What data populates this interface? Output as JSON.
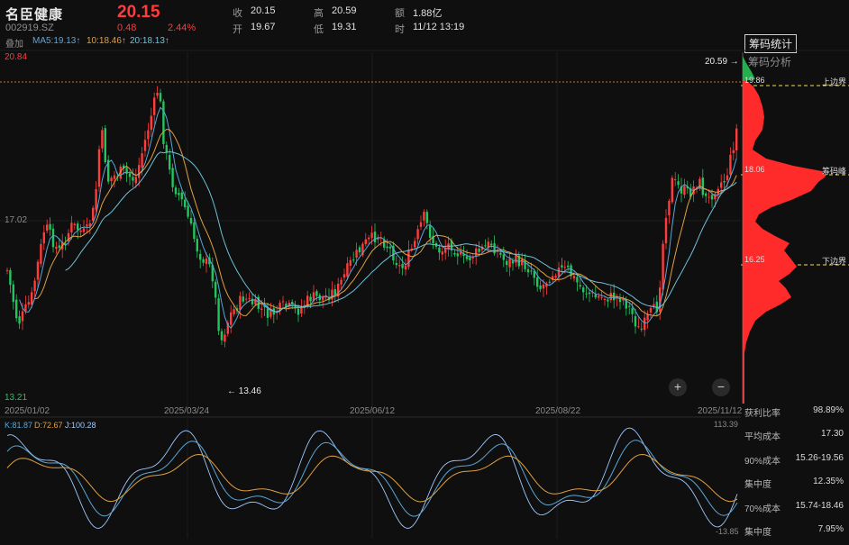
{
  "stock": {
    "name": "名臣健康",
    "code": "002919.SZ",
    "price": "20.15",
    "change": "0.48",
    "change_pct": "2.44%"
  },
  "quote": {
    "close_label": "收",
    "close": "20.15",
    "open_label": "开",
    "open": "19.67",
    "high_label": "高",
    "high": "20.59",
    "low_label": "低",
    "low": "19.31",
    "amount_label": "额",
    "amount": "1.88亿",
    "time_label": "时",
    "time": "11/12 13:19"
  },
  "ma": {
    "overlay": "叠加",
    "ma5": "MA5:19.13↑",
    "ma10": "10:18.46↑",
    "ma20": "20:18.13↑"
  },
  "tabs": {
    "chip_stats": "筹码统计",
    "chip_analysis": "筹码分析"
  },
  "chart_labels": {
    "axis_top": "20.84",
    "axis_mid": "17.02",
    "axis_bottom": "13.21",
    "high_mark": "20.59 →",
    "low_mark": "← 13.46",
    "dates": [
      "2025/01/02",
      "2025/03/24",
      "2025/06/12",
      "2025/08/22",
      "2025/11/12"
    ]
  },
  "chip": {
    "upper_value": "19.86",
    "upper_label": "上边界",
    "peak_value": "18.06",
    "peak_label": "筹码峰",
    "lower_value": "16.25",
    "lower_label": "下边界"
  },
  "kdj": {
    "k": "K:81.87",
    "d": "D:72.67",
    "j": "J:100.28",
    "max": "113.39",
    "min": "-13.85"
  },
  "stats": [
    {
      "label": "获利比率",
      "value": "98.89%"
    },
    {
      "label": "平均成本",
      "value": "17.30"
    },
    {
      "label": "90%成本",
      "value": "15.26-19.56"
    },
    {
      "label": "集中度",
      "value": "12.35%"
    },
    {
      "label": "70%成本",
      "value": "15.74-18.46"
    },
    {
      "label": "集中度",
      "value": "7.95%"
    }
  ],
  "zoom": {
    "plus": "+",
    "minus": "−"
  },
  "colors": {
    "up": "#ff3b3b",
    "down": "#22c55e",
    "ma5": "#5aa6d6",
    "ma10": "#e0a040",
    "ma20": "#6fc1d8",
    "chip_fill": "#ff2a2a",
    "boundary": "#e8e04a"
  }
}
